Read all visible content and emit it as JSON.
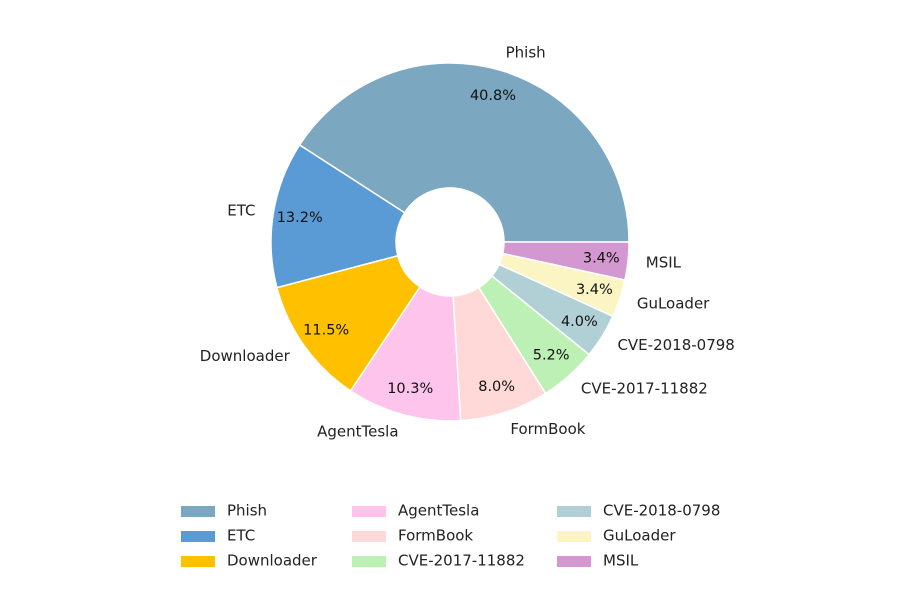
{
  "chart_data": {
    "type": "pie",
    "donut": true,
    "title": "",
    "categories": [
      "Phish",
      "ETC",
      "Downloader",
      "AgentTesla",
      "FormBook",
      "CVE-2017-11882",
      "CVE-2018-0798",
      "GuLoader",
      "MSIL"
    ],
    "values": [
      40.8,
      13.2,
      11.5,
      10.3,
      8.0,
      5.2,
      4.0,
      3.4,
      3.4
    ],
    "value_labels": [
      "40.8%",
      "13.2%",
      "11.5%",
      "10.3%",
      "8.0%",
      "5.2%",
      "4.0%",
      "3.4%",
      "3.4%"
    ],
    "colors": [
      "#7ba7c1",
      "#5b9bd5",
      "#ffc000",
      "#ffc4ec",
      "#ffd8d8",
      "#bdf0b4",
      "#b1d0d6",
      "#fbf5c3",
      "#d498d1"
    ],
    "legend_position": "bottom",
    "legend_columns": 3
  }
}
